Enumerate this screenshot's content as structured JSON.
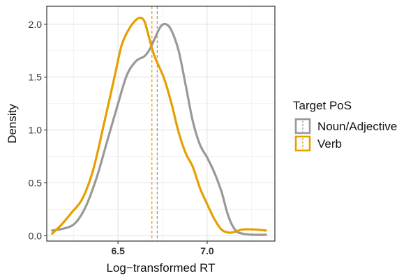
{
  "chart_data": {
    "type": "line",
    "title": "",
    "xlabel": "Log−transformed RT",
    "ylabel": "Density",
    "xlim": [
      6.1,
      7.38
    ],
    "ylim": [
      -0.05,
      2.17
    ],
    "x_ticks": [
      6.5,
      7.0
    ],
    "x_tick_labels": [
      "6.5",
      "7.0"
    ],
    "y_ticks": [
      0.0,
      0.5,
      1.0,
      1.5,
      2.0
    ],
    "y_tick_labels": [
      "0.0",
      "0.5",
      "1.0",
      "1.5",
      "2.0"
    ],
    "grid": true,
    "legend": {
      "title": "Target PoS",
      "placement": "right"
    },
    "series": [
      {
        "name": "Noun/Adjective",
        "color": "#999999",
        "mean": 6.72,
        "x": [
          6.13,
          6.2,
          6.26,
          6.32,
          6.38,
          6.44,
          6.5,
          6.55,
          6.6,
          6.65,
          6.68,
          6.71,
          6.74,
          6.77,
          6.8,
          6.84,
          6.88,
          6.92,
          6.96,
          7.0,
          7.04,
          7.08,
          7.12,
          7.16,
          7.2,
          7.26,
          7.33
        ],
        "y": [
          0.05,
          0.07,
          0.12,
          0.28,
          0.55,
          0.9,
          1.25,
          1.52,
          1.65,
          1.7,
          1.77,
          1.88,
          1.98,
          2.0,
          1.94,
          1.75,
          1.42,
          1.08,
          0.86,
          0.74,
          0.6,
          0.42,
          0.18,
          0.05,
          0.02,
          0.01,
          0.01
        ]
      },
      {
        "name": "Verb",
        "color": "#E69F00",
        "mean": 6.69,
        "x": [
          6.13,
          6.18,
          6.24,
          6.3,
          6.36,
          6.42,
          6.48,
          6.52,
          6.56,
          6.6,
          6.63,
          6.65,
          6.67,
          6.7,
          6.73,
          6.76,
          6.8,
          6.84,
          6.88,
          6.92,
          6.96,
          7.0,
          7.04,
          7.08,
          7.12,
          7.16,
          7.2,
          7.26,
          7.33
        ],
        "y": [
          0.02,
          0.1,
          0.22,
          0.35,
          0.62,
          1.05,
          1.5,
          1.8,
          1.95,
          2.04,
          2.06,
          2.02,
          1.9,
          1.72,
          1.6,
          1.48,
          1.25,
          0.98,
          0.78,
          0.65,
          0.45,
          0.3,
          0.16,
          0.06,
          0.03,
          0.04,
          0.06,
          0.06,
          0.05
        ]
      }
    ]
  }
}
